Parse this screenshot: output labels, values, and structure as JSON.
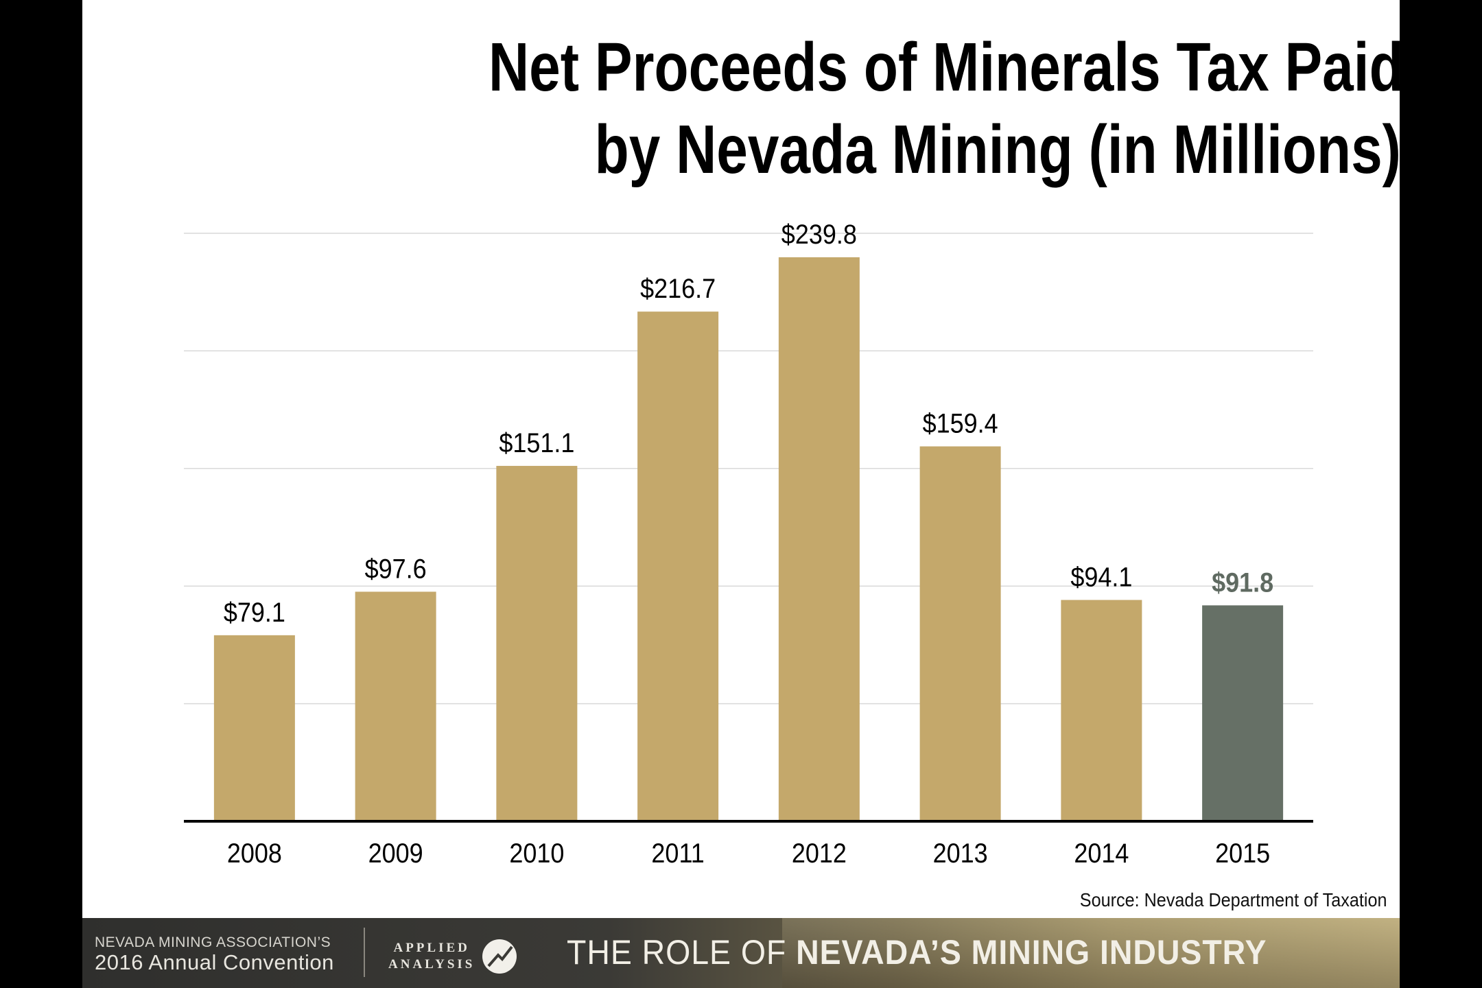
{
  "slide": {
    "title_line1": "Net Proceeds of Minerals Tax Paid",
    "title_line2": "by Nevada Mining (in Millions)",
    "source": "Source:  Nevada Department of Taxation"
  },
  "footer": {
    "association_line1": "NEVADA MINING ASSOCIATION’S",
    "association_line2": "2016 Annual Convention",
    "analysis_logo_line1": "APPLIED",
    "analysis_logo_line2": "ANALYSIS",
    "tagline_prefix": "THE ROLE OF ",
    "tagline_emphasis": "NEVADA’S MINING INDUSTRY"
  },
  "chart_data": {
    "type": "bar",
    "title": "Net Proceeds of Minerals Tax Paid by Nevada Mining (in Millions)",
    "categories": [
      "2008",
      "2009",
      "2010",
      "2011",
      "2012",
      "2013",
      "2014",
      "2015"
    ],
    "values": [
      79.1,
      97.6,
      151.1,
      216.7,
      239.8,
      159.4,
      94.1,
      91.8
    ],
    "value_labels": [
      "$79.1",
      "$97.6",
      "$151.1",
      "$216.7",
      "$239.8",
      "$159.4",
      "$94.1",
      "$91.8"
    ],
    "bar_colors": [
      "#c4a86b",
      "#c4a86b",
      "#c4a86b",
      "#c4a86b",
      "#c4a86b",
      "#c4a86b",
      "#c4a86b",
      "#667066"
    ],
    "highlight_label_color": "#5f6a61",
    "ylim": [
      0,
      250
    ],
    "grid": true,
    "gridline_values": [
      50,
      100,
      150,
      200,
      250
    ],
    "legend": "none",
    "xlabel": "",
    "ylabel": ""
  }
}
